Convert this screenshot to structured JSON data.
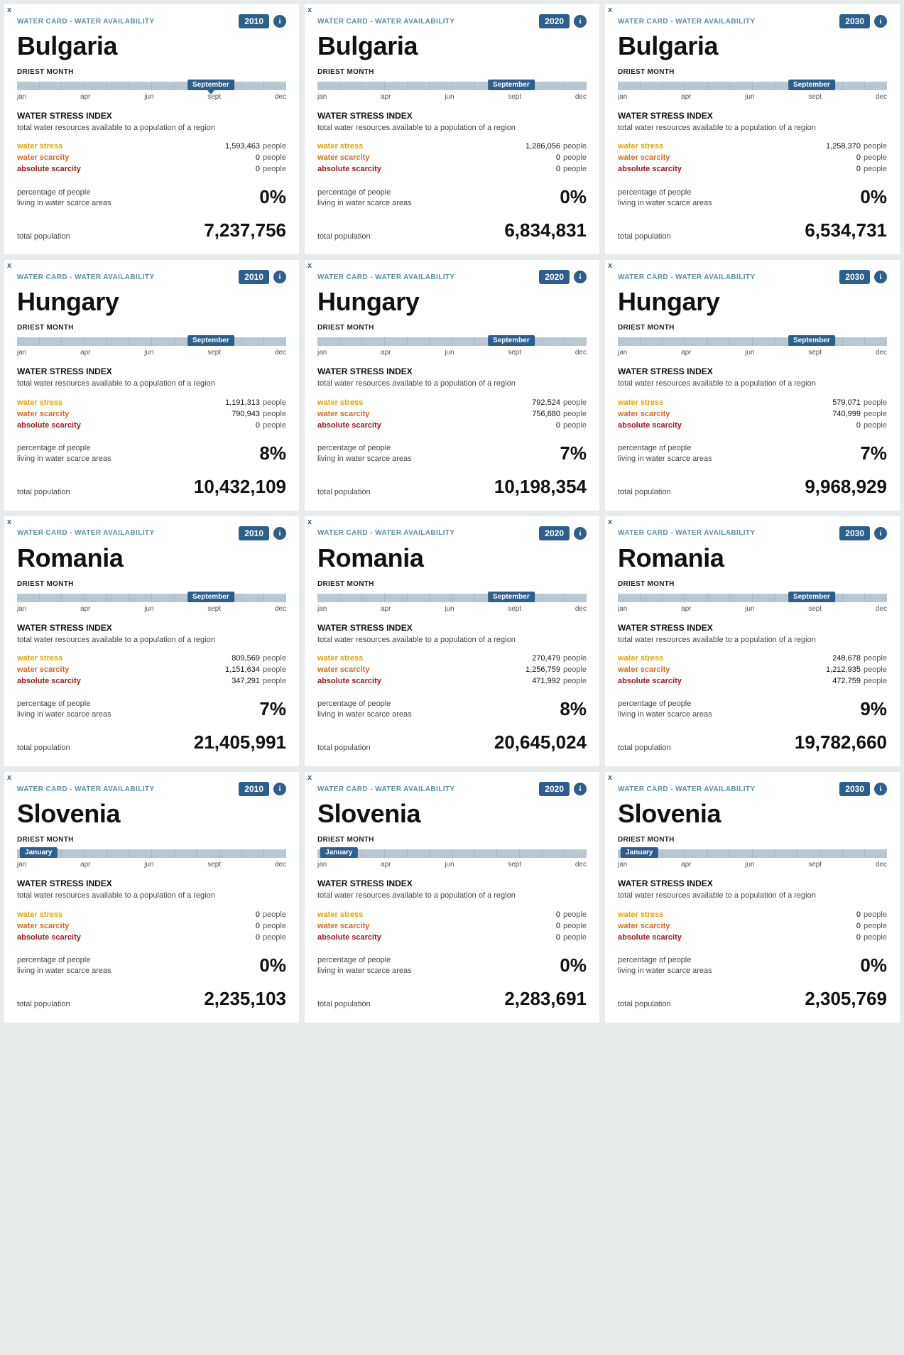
{
  "labels": {
    "breadcrumb": "WATER CARD - WATER AVAILABILITY",
    "driest_month": "DRIEST MONTH",
    "wsi_title": "WATER STRESS INDEX",
    "wsi_desc": "total water resources available to a population of a region",
    "stress": "water stress",
    "scarcity": "water scarcity",
    "absolute": "absolute scarcity",
    "people": "people",
    "pct_line1": "percentage of people",
    "pct_line2": "living in water scarce areas",
    "pop": "total population",
    "axis": [
      "jan",
      "apr",
      "jun",
      "sept",
      "dec"
    ],
    "info": "i",
    "close": "x"
  },
  "style": {
    "pill_september_left_pct": 72,
    "pill_january_left_pct": 8,
    "show_marker_on_first_card": true,
    "colors": {
      "brand": "#2c5f8d",
      "bar": "#b9c8d0",
      "stress": "#e0a400",
      "scarcity": "#d06b1c",
      "absolute": "#a01818",
      "page_bg": "#e8ebec"
    }
  },
  "cards": [
    {
      "country": "Bulgaria",
      "year": "2010",
      "month": "September",
      "month_pos": "sept",
      "stress": "1,593,463",
      "scarcity": "0",
      "absolute": "0",
      "pct": "0%",
      "pop": "7,237,756"
    },
    {
      "country": "Bulgaria",
      "year": "2020",
      "month": "September",
      "month_pos": "sept",
      "stress": "1,286,056",
      "scarcity": "0",
      "absolute": "0",
      "pct": "0%",
      "pop": "6,834,831"
    },
    {
      "country": "Bulgaria",
      "year": "2030",
      "month": "September",
      "month_pos": "sept",
      "stress": "1,258,370",
      "scarcity": "0",
      "absolute": "0",
      "pct": "0%",
      "pop": "6,534,731"
    },
    {
      "country": "Hungary",
      "year": "2010",
      "month": "September",
      "month_pos": "sept",
      "stress": "1,191,313",
      "scarcity": "790,943",
      "absolute": "0",
      "pct": "8%",
      "pop": "10,432,109"
    },
    {
      "country": "Hungary",
      "year": "2020",
      "month": "September",
      "month_pos": "sept",
      "stress": "792,524",
      "scarcity": "756,680",
      "absolute": "0",
      "pct": "7%",
      "pop": "10,198,354"
    },
    {
      "country": "Hungary",
      "year": "2030",
      "month": "September",
      "month_pos": "sept",
      "stress": "579,071",
      "scarcity": "740,999",
      "absolute": "0",
      "pct": "7%",
      "pop": "9,968,929"
    },
    {
      "country": "Romania",
      "year": "2010",
      "month": "September",
      "month_pos": "sept",
      "stress": "809,569",
      "scarcity": "1,151,634",
      "absolute": "347,291",
      "pct": "7%",
      "pop": "21,405,991"
    },
    {
      "country": "Romania",
      "year": "2020",
      "month": "September",
      "month_pos": "sept",
      "stress": "270,479",
      "scarcity": "1,256,759",
      "absolute": "471,992",
      "pct": "8%",
      "pop": "20,645,024"
    },
    {
      "country": "Romania",
      "year": "2030",
      "month": "September",
      "month_pos": "sept",
      "stress": "248,678",
      "scarcity": "1,212,935",
      "absolute": "472,759",
      "pct": "9%",
      "pop": "19,782,660"
    },
    {
      "country": "Slovenia",
      "year": "2010",
      "month": "January",
      "month_pos": "jan",
      "stress": "0",
      "scarcity": "0",
      "absolute": "0",
      "pct": "0%",
      "pop": "2,235,103"
    },
    {
      "country": "Slovenia",
      "year": "2020",
      "month": "January",
      "month_pos": "jan",
      "stress": "0",
      "scarcity": "0",
      "absolute": "0",
      "pct": "0%",
      "pop": "2,283,691"
    },
    {
      "country": "Slovenia",
      "year": "2030",
      "month": "January",
      "month_pos": "jan",
      "stress": "0",
      "scarcity": "0",
      "absolute": "0",
      "pct": "0%",
      "pop": "2,305,769"
    }
  ]
}
